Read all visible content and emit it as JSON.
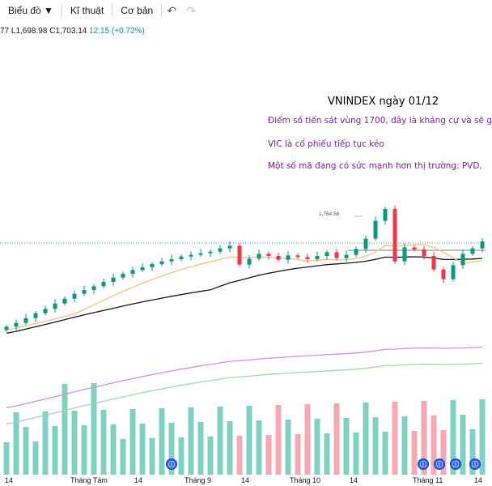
{
  "toolbar": {
    "chart_label": "Biểu đồ ▼",
    "technicals_label": "Kĩ thuật",
    "fundamentals_label": "Cơ bản",
    "undo_icon": "undo-icon",
    "redo_icon": "redo-icon"
  },
  "quote": {
    "open_suffix": "77",
    "low": "L1,698.98",
    "close": "C1,703.14",
    "change": "12.15 (+0.72%)"
  },
  "annotation": {
    "title": "VNINDEX ngày 01/12",
    "line1": "Điểm số tiến sát vùng 1700, đây là kháng cự và sẽ g",
    "line2": "VIC là cổ phiếu tiếp tục kéo",
    "line3": "Một số mã đang có sức mạnh hơn thị trường: PVD,"
  },
  "peak_label": "1,764.58",
  "xaxis": {
    "labels": [
      "14",
      "Tháng Tám",
      "14",
      "Tháng 9",
      "14",
      "Tháng 10",
      "14",
      "Tháng 11",
      "14"
    ]
  },
  "event_icon": "earnings-event-icon",
  "colors": {
    "up": "#089981",
    "down": "#f23645",
    "volume_up": "#7fd1c2",
    "volume_down": "#f7a8b2",
    "ma_slow": "#131722",
    "ma_fast": "#f0c47a",
    "ma_purple": "#ce93d8",
    "ma_green": "#a5d6a7",
    "annotation_text": "#7b1fa2"
  },
  "chart_data": {
    "type": "candlestick",
    "x_tick_labels": [
      "14",
      "Tháng Tám",
      "14",
      "Tháng 9",
      "14",
      "Tháng 10",
      "14",
      "Tháng 11",
      "14"
    ],
    "close_approx": [
      1545,
      1552,
      1561,
      1570,
      1578,
      1588,
      1597,
      1606,
      1613,
      1620,
      1628,
      1636,
      1643,
      1650,
      1655,
      1661,
      1666,
      1670,
      1675,
      1678,
      1681,
      1684,
      1690,
      1695,
      1660,
      1671,
      1680,
      1676,
      1669,
      1677,
      1674,
      1670,
      1676,
      1683,
      1672,
      1678,
      1689,
      1708,
      1741,
      1763,
      1666,
      1692,
      1688,
      1676,
      1651,
      1633,
      1659,
      1680,
      1690,
      1703
    ],
    "peak_value": 1764.58,
    "resistance_level": 1700,
    "moving_averages": [
      "ma_fast",
      "ma_slow",
      "ma_purple",
      "ma_green"
    ],
    "volume_bars": true,
    "grid": false,
    "legend": "none"
  }
}
